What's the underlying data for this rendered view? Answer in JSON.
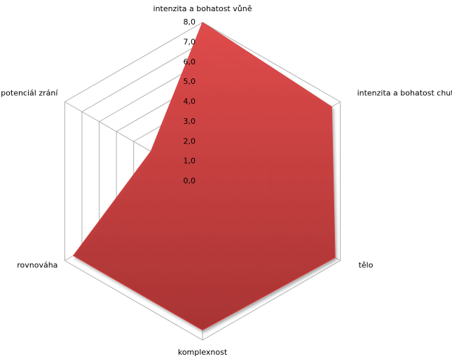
{
  "chart_data": {
    "type": "radar",
    "categories": [
      "intenzita a bohatost  vůně",
      "intenzita a bohatost  chuti",
      "tělo",
      "komplexnost",
      "rovnováha",
      "potenciál zrání"
    ],
    "values": [
      8.0,
      7.5,
      7.7,
      7.5,
      7.5,
      3.0
    ],
    "color": "#d64141",
    "ylim": [
      0,
      8
    ],
    "yticks": [
      {
        "value": 0,
        "label": "0,0"
      },
      {
        "value": 1,
        "label": "1,0"
      },
      {
        "value": 2,
        "label": "2,0"
      },
      {
        "value": 3,
        "label": "3,0"
      },
      {
        "value": 4,
        "label": "4,0"
      },
      {
        "value": 5,
        "label": "5,0"
      },
      {
        "value": 6,
        "label": "6,0"
      },
      {
        "value": 7,
        "label": "7,0"
      },
      {
        "value": 8,
        "label": "8,0"
      }
    ],
    "grid": true
  }
}
